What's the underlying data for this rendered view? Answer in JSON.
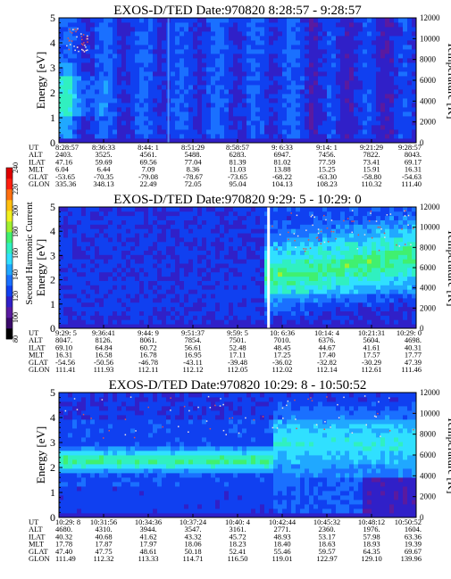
{
  "colorbar": {
    "label": "Second Harmonic Current",
    "ticks": [
      "240",
      "220",
      "200",
      "180",
      "160",
      "140",
      "120",
      "100",
      "80"
    ],
    "colors": [
      "#000000",
      "#3a0a6a",
      "#5a1aa0",
      "#3020c8",
      "#1040f0",
      "#1a70ff",
      "#20a8ff",
      "#30e0ff",
      "#30f0c0",
      "#40f070",
      "#a0f030",
      "#f0f020",
      "#ffc010",
      "#ff7010",
      "#ff2010",
      "#e00000"
    ]
  },
  "y_axis_label": "Energy [eV]",
  "y2_axis_label": "Temperature [K]",
  "row_labels": [
    "UT",
    "ALT",
    "ILAT",
    "MLT",
    "GLAT",
    "GLON"
  ],
  "chart_data": [
    {
      "type": "heatmap",
      "title": "EXOS-D/TED   Date:970820  8:28:57 - 9:28:57",
      "ylabel": "Energy [eV]",
      "ylim": [
        0,
        5
      ],
      "yticks": [
        "0",
        "1",
        "2",
        "3",
        "4",
        "5"
      ],
      "y2label": "Temperature [K]",
      "y2lim": [
        0,
        12000
      ],
      "y2ticks": [
        "0",
        "2000",
        "4000",
        "6000",
        "8000",
        "10000",
        "12000"
      ],
      "rows": {
        "UT": [
          "8:28:57",
          "8:36:33",
          "8:44: 1",
          "8:51:29",
          "8:58:57",
          "9: 6:33",
          "9:14: 1",
          "9:21:29",
          "9:28:57"
        ],
        "ALT": [
          "2403.",
          "3525.",
          "4561.",
          "5488.",
          "6283.",
          "6947.",
          "7456.",
          "7822.",
          "8043."
        ],
        "ILAT": [
          "47.16",
          "59.69",
          "69.56",
          "77.04",
          "81.39",
          "81.02",
          "77.59",
          "73.41",
          "69.17"
        ],
        "MLT": [
          "6.04",
          "6.44",
          "7.09",
          "8.36",
          "11.03",
          "13.88",
          "15.25",
          "15.91",
          "16.31"
        ],
        "GLAT": [
          "-53.65",
          "-70.35",
          "-79.08",
          "-78.67",
          "-73.65",
          "-68.22",
          "-63.30",
          "-58.80",
          "-54.63"
        ],
        "GLON": [
          "335.36",
          "348.13",
          "22.49",
          "72.05",
          "95.04",
          "104.13",
          "108.23",
          "110.32",
          "111.40"
        ]
      }
    },
    {
      "type": "heatmap",
      "title": "EXOS-D/TED   Date:970820  9:29: 5 - 10:29: 0",
      "ylabel": "Energy [eV]",
      "ylim": [
        0,
        5
      ],
      "yticks": [
        "0",
        "1",
        "2",
        "3",
        "4",
        "5"
      ],
      "y2label": "Temperature [K]",
      "y2lim": [
        0,
        12000
      ],
      "y2ticks": [
        "0",
        "2000",
        "4000",
        "6000",
        "8000",
        "10000",
        "12000"
      ],
      "rows": {
        "UT": [
          "9:29: 5",
          "9:36:41",
          "9:44: 9",
          "9:51:37",
          "9:59: 5",
          "10: 6:36",
          "10:14: 4",
          "10:21:31",
          "10:29: 0"
        ],
        "ALT": [
          "8047.",
          "8126.",
          "8061.",
          "7854.",
          "7501.",
          "7010.",
          "6376.",
          "5604.",
          "4698."
        ],
        "ILAT": [
          "69.10",
          "64.84",
          "60.72",
          "56.61",
          "52.48",
          "48.45",
          "44.67",
          "41.61",
          "40.31"
        ],
        "MLT": [
          "16.31",
          "16.58",
          "16.78",
          "16.95",
          "17.11",
          "17.25",
          "17.40",
          "17.57",
          "17.77"
        ],
        "GLAT": [
          "-54.56",
          "-50.56",
          "-46.78",
          "-43.11",
          "-39.48",
          "-36.02",
          "-32.82",
          "-30.29",
          "47.39"
        ],
        "GLON": [
          "111.41",
          "111.93",
          "112.11",
          "112.12",
          "112.05",
          "112.02",
          "112.14",
          "112.61",
          "111.46"
        ]
      }
    },
    {
      "type": "heatmap",
      "title": "EXOS-D/TED   Date:970820  10:29: 8 - 10:50:52",
      "ylabel": "Energy [eV]",
      "ylim": [
        0,
        5
      ],
      "yticks": [
        "0",
        "1",
        "2",
        "3",
        "4",
        "5"
      ],
      "y2label": "Temperature [K]",
      "y2lim": [
        0,
        12000
      ],
      "y2ticks": [
        "0",
        "2000",
        "4000",
        "6000",
        "8000",
        "10000",
        "12000"
      ],
      "rows": {
        "UT": [
          "10:29: 8",
          "10:31:56",
          "10:34:36",
          "10:37:24",
          "10:40: 4",
          "10:42:44",
          "10:45:32",
          "10:48:12",
          "10:50:52"
        ],
        "ALT": [
          "4680.",
          "4310.",
          "3944.",
          "3547.",
          "3161.",
          "2771.",
          "2360.",
          "1976.",
          "1604."
        ],
        "ILAT": [
          "40.32",
          "40.68",
          "41.62",
          "43.32",
          "45.72",
          "48.93",
          "53.17",
          "57.98",
          "63.36"
        ],
        "MLT": [
          "17.78",
          "17.87",
          "17.97",
          "18.06",
          "18.23",
          "18.40",
          "18.63",
          "18.93",
          "19.39"
        ],
        "GLAT": [
          "47.40",
          "47.75",
          "48.61",
          "50.18",
          "52.41",
          "55.46",
          "59.57",
          "64.35",
          "69.67"
        ],
        "GLON": [
          "111.49",
          "112.32",
          "113.33",
          "114.71",
          "116.50",
          "119.01",
          "122.97",
          "129.10",
          "139.96"
        ]
      }
    }
  ]
}
